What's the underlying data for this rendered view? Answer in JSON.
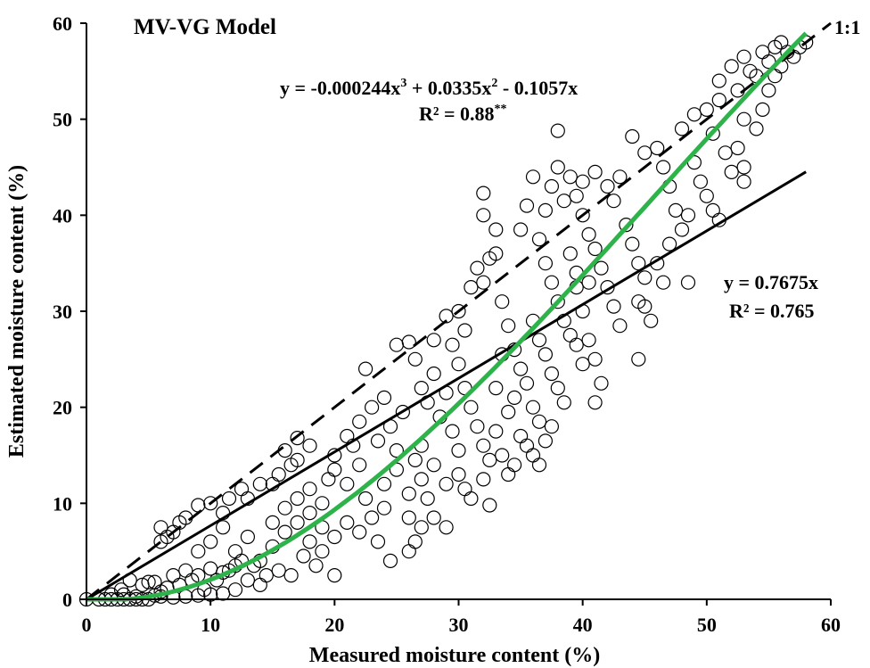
{
  "chart_data": {
    "type": "scatter",
    "title": "MV-VG Model",
    "xlabel": "Measured moisture content (%)",
    "ylabel": "Estimated moisture content (%)",
    "xlim": [
      0,
      60
    ],
    "ylim": [
      0,
      60
    ],
    "x_ticks": [
      0,
      10,
      20,
      30,
      40,
      50,
      60
    ],
    "y_ticks": [
      0,
      10,
      20,
      30,
      40,
      50,
      60
    ],
    "grid": false,
    "marker": "open-circle",
    "colors": {
      "axis": "#000000",
      "points": "#000000",
      "fit_cubic": "#2db34a",
      "fit_linear": "#000000",
      "one_to_one": "#000000"
    },
    "one_to_one_label": "1:1",
    "lines": [
      {
        "type": "one-to-one",
        "style": "dashed",
        "x": [
          0,
          60
        ],
        "y": [
          0,
          60
        ]
      },
      {
        "type": "linear",
        "style": "solid",
        "color": "#000000",
        "slope": 0.7675,
        "x": [
          0,
          58
        ]
      },
      {
        "type": "cubic",
        "style": "solid",
        "color": "#2db34a",
        "coefficients": [
          -0.000244,
          0.0335,
          -0.1057,
          0
        ],
        "x": [
          0,
          58
        ]
      }
    ],
    "annotations": {
      "cubic_equation": {
        "main": "y = -0.000244x",
        "e1": "3",
        "mid": " + 0.0335x",
        "e2": "2",
        "tail": " - 0.1057x"
      },
      "cubic_r2": {
        "main": "R² = 0.88",
        "sup": "**"
      },
      "linear_equation": "y = 0.7675x",
      "linear_r2": "R² = 0.765"
    },
    "points": [
      [
        0.0,
        0.0
      ],
      [
        1.0,
        0.0
      ],
      [
        1.5,
        0.0
      ],
      [
        2.0,
        0.0
      ],
      [
        2.5,
        0.0
      ],
      [
        3.0,
        0.0
      ],
      [
        3.5,
        0.0
      ],
      [
        4.0,
        0.0
      ],
      [
        4.5,
        0.0
      ],
      [
        5.0,
        0.0
      ],
      [
        2.0,
        0.5
      ],
      [
        3.0,
        0.5
      ],
      [
        4.0,
        0.3
      ],
      [
        5.5,
        0.4
      ],
      [
        6.0,
        0.3
      ],
      [
        7.0,
        0.2
      ],
      [
        8.0,
        0.3
      ],
      [
        9.0,
        0.4
      ],
      [
        10.0,
        0.5
      ],
      [
        11.0,
        0.6
      ],
      [
        2.8,
        1.0
      ],
      [
        3.5,
        2.0
      ],
      [
        4.5,
        1.5
      ],
      [
        5.5,
        1.8
      ],
      [
        6.5,
        1.2
      ],
      [
        7.5,
        1.5
      ],
      [
        8.5,
        2.0
      ],
      [
        9.5,
        1.0
      ],
      [
        10.5,
        2.0
      ],
      [
        12.0,
        1.0
      ],
      [
        5.0,
        1.8
      ],
      [
        6.0,
        0.8
      ],
      [
        7.0,
        2.5
      ],
      [
        8.0,
        3.0
      ],
      [
        9.0,
        2.5
      ],
      [
        10.0,
        3.2
      ],
      [
        11.0,
        2.8
      ],
      [
        12.0,
        3.5
      ],
      [
        13.0,
        2.0
      ],
      [
        14.0,
        1.5
      ],
      [
        6.0,
        6.0
      ],
      [
        6.0,
        7.5
      ],
      [
        6.5,
        6.5
      ],
      [
        7.0,
        7.0
      ],
      [
        7.5,
        8.0
      ],
      [
        8.0,
        8.5
      ],
      [
        9.0,
        9.8
      ],
      [
        10.0,
        10.0
      ],
      [
        11.5,
        10.5
      ],
      [
        11.0,
        9.0
      ],
      [
        12.5,
        11.5
      ],
      [
        15.0,
        12.0
      ],
      [
        16.0,
        15.5
      ],
      [
        17.0,
        16.8
      ],
      [
        17.0,
        14.5
      ],
      [
        18.0,
        16.0
      ],
      [
        13.0,
        10.5
      ],
      [
        14.0,
        12.0
      ],
      [
        15.5,
        13.0
      ],
      [
        16.5,
        14.0
      ],
      [
        9.0,
        5.0
      ],
      [
        10.0,
        6.0
      ],
      [
        11.0,
        7.5
      ],
      [
        12.0,
        5.0
      ],
      [
        13.0,
        6.5
      ],
      [
        14.0,
        4.0
      ],
      [
        15.0,
        5.5
      ],
      [
        16.0,
        7.0
      ],
      [
        17.0,
        8.0
      ],
      [
        18.0,
        9.0
      ],
      [
        11.5,
        3.0
      ],
      [
        12.5,
        4.0
      ],
      [
        13.5,
        3.5
      ],
      [
        14.5,
        2.5
      ],
      [
        15.5,
        3.0
      ],
      [
        16.5,
        2.5
      ],
      [
        17.5,
        4.5
      ],
      [
        18.5,
        3.5
      ],
      [
        19.0,
        5.0
      ],
      [
        20.0,
        2.5
      ],
      [
        15.0,
        8.0
      ],
      [
        16.0,
        9.5
      ],
      [
        17.0,
        10.5
      ],
      [
        18.0,
        11.5
      ],
      [
        19.0,
        10.0
      ],
      [
        19.5,
        12.5
      ],
      [
        20.0,
        13.5
      ],
      [
        21.0,
        12.0
      ],
      [
        22.0,
        14.0
      ],
      [
        21.5,
        16.0
      ],
      [
        18.0,
        6.0
      ],
      [
        19.0,
        7.5
      ],
      [
        20.0,
        6.5
      ],
      [
        21.0,
        8.0
      ],
      [
        22.0,
        7.0
      ],
      [
        23.0,
        8.5
      ],
      [
        24.0,
        9.5
      ],
      [
        23.5,
        6.0
      ],
      [
        24.5,
        4.0
      ],
      [
        22.5,
        10.5
      ],
      [
        20.0,
        15.0
      ],
      [
        21.0,
        17.0
      ],
      [
        22.0,
        18.5
      ],
      [
        22.5,
        24.0
      ],
      [
        23.0,
        20.0
      ],
      [
        23.5,
        16.5
      ],
      [
        24.0,
        21.0
      ],
      [
        24.5,
        18.0
      ],
      [
        25.0,
        15.5
      ],
      [
        25.5,
        19.5
      ],
      [
        24.0,
        12.0
      ],
      [
        25.0,
        13.5
      ],
      [
        26.0,
        11.0
      ],
      [
        26.5,
        14.5
      ],
      [
        27.0,
        12.5
      ],
      [
        27.5,
        10.5
      ],
      [
        26.0,
        8.5
      ],
      [
        27.0,
        7.5
      ],
      [
        28.0,
        8.5
      ],
      [
        29.0,
        7.5
      ],
      [
        25.0,
        26.5
      ],
      [
        26.0,
        26.8
      ],
      [
        26.5,
        25.0
      ],
      [
        27.0,
        22.0
      ],
      [
        27.5,
        20.5
      ],
      [
        28.0,
        23.5
      ],
      [
        28.5,
        19.0
      ],
      [
        29.0,
        21.5
      ],
      [
        29.5,
        17.5
      ],
      [
        30.0,
        15.5
      ],
      [
        26.0,
        5.0
      ],
      [
        26.5,
        6.0
      ],
      [
        27.0,
        16.0
      ],
      [
        28.0,
        14.0
      ],
      [
        29.0,
        12.0
      ],
      [
        30.0,
        13.0
      ],
      [
        30.5,
        11.5
      ],
      [
        31.0,
        10.5
      ],
      [
        32.0,
        12.5
      ],
      [
        32.5,
        9.8
      ],
      [
        28.0,
        27.0
      ],
      [
        29.0,
        29.5
      ],
      [
        29.5,
        26.5
      ],
      [
        30.0,
        30.0
      ],
      [
        30.5,
        28.0
      ],
      [
        31.0,
        32.5
      ],
      [
        31.5,
        34.5
      ],
      [
        32.0,
        33.0
      ],
      [
        32.5,
        35.5
      ],
      [
        33.0,
        36.0
      ],
      [
        30.0,
        24.5
      ],
      [
        30.5,
        22.0
      ],
      [
        31.0,
        20.0
      ],
      [
        31.5,
        18.0
      ],
      [
        32.0,
        16.0
      ],
      [
        32.5,
        14.5
      ],
      [
        33.0,
        17.5
      ],
      [
        33.5,
        15.0
      ],
      [
        34.0,
        13.0
      ],
      [
        34.5,
        14.0
      ],
      [
        32.0,
        40.0
      ],
      [
        32.0,
        42.3
      ],
      [
        33.0,
        38.5
      ],
      [
        33.5,
        31.0
      ],
      [
        34.0,
        28.5
      ],
      [
        34.5,
        26.0
      ],
      [
        35.0,
        24.0
      ],
      [
        35.5,
        22.5
      ],
      [
        36.0,
        20.0
      ],
      [
        36.5,
        18.5
      ],
      [
        33.0,
        22.0
      ],
      [
        33.5,
        25.5
      ],
      [
        34.0,
        19.5
      ],
      [
        34.5,
        21.0
      ],
      [
        35.0,
        17.0
      ],
      [
        35.5,
        16.0
      ],
      [
        36.0,
        15.0
      ],
      [
        36.5,
        14.0
      ],
      [
        37.0,
        16.5
      ],
      [
        37.5,
        18.0
      ],
      [
        35.0,
        38.5
      ],
      [
        35.5,
        41.0
      ],
      [
        36.0,
        44.0
      ],
      [
        36.5,
        37.5
      ],
      [
        37.0,
        35.0
      ],
      [
        37.5,
        33.0
      ],
      [
        38.0,
        31.0
      ],
      [
        38.5,
        29.0
      ],
      [
        39.0,
        27.5
      ],
      [
        39.5,
        32.5
      ],
      [
        36.0,
        29.0
      ],
      [
        36.5,
        27.0
      ],
      [
        37.0,
        25.5
      ],
      [
        37.5,
        23.5
      ],
      [
        38.0,
        22.0
      ],
      [
        38.5,
        20.5
      ],
      [
        37.0,
        40.5
      ],
      [
        37.5,
        43.0
      ],
      [
        38.0,
        45.0
      ],
      [
        38.5,
        41.5
      ],
      [
        38.0,
        48.8
      ],
      [
        39.0,
        44.0
      ],
      [
        39.5,
        42.0
      ],
      [
        40.0,
        40.0
      ],
      [
        40.5,
        38.0
      ],
      [
        41.0,
        36.5
      ],
      [
        41.5,
        34.5
      ],
      [
        42.0,
        32.5
      ],
      [
        42.5,
        30.5
      ],
      [
        43.0,
        28.5
      ],
      [
        39.0,
        36.0
      ],
      [
        39.5,
        34.0
      ],
      [
        40.0,
        30.0
      ],
      [
        40.5,
        27.0
      ],
      [
        41.0,
        25.0
      ],
      [
        41.5,
        22.5
      ],
      [
        41.0,
        20.5
      ],
      [
        40.0,
        24.5
      ],
      [
        39.5,
        26.5
      ],
      [
        40.5,
        33.0
      ],
      [
        40.0,
        43.5
      ],
      [
        41.0,
        44.5
      ],
      [
        42.0,
        43.0
      ],
      [
        42.5,
        41.5
      ],
      [
        43.0,
        44.0
      ],
      [
        43.5,
        39.0
      ],
      [
        44.0,
        37.0
      ],
      [
        44.5,
        35.0
      ],
      [
        45.0,
        33.5
      ],
      [
        44.5,
        31.0
      ],
      [
        44.5,
        25.0
      ],
      [
        45.0,
        30.5
      ],
      [
        45.5,
        29.0
      ],
      [
        44.0,
        48.2
      ],
      [
        45.0,
        46.5
      ],
      [
        46.0,
        47.0
      ],
      [
        46.5,
        45.0
      ],
      [
        47.0,
        43.0
      ],
      [
        47.5,
        40.5
      ],
      [
        48.0,
        38.5
      ],
      [
        46.0,
        35.0
      ],
      [
        46.5,
        33.0
      ],
      [
        47.0,
        37.0
      ],
      [
        48.5,
        40.0
      ],
      [
        48.5,
        33.0
      ],
      [
        49.0,
        45.5
      ],
      [
        49.5,
        43.5
      ],
      [
        50.0,
        42.0
      ],
      [
        50.5,
        40.5
      ],
      [
        51.0,
        39.5
      ],
      [
        48.0,
        49.0
      ],
      [
        49.0,
        50.5
      ],
      [
        50.0,
        51.0
      ],
      [
        50.5,
        48.5
      ],
      [
        51.0,
        52.0
      ],
      [
        51.5,
        46.5
      ],
      [
        52.0,
        44.5
      ],
      [
        52.5,
        47.0
      ],
      [
        53.0,
        45.0
      ],
      [
        53.0,
        50.0
      ],
      [
        51.0,
        54.0
      ],
      [
        52.0,
        55.5
      ],
      [
        52.5,
        53.0
      ],
      [
        53.0,
        56.5
      ],
      [
        53.5,
        55.0
      ],
      [
        54.0,
        54.5
      ],
      [
        54.5,
        57.0
      ],
      [
        55.0,
        56.0
      ],
      [
        55.5,
        57.5
      ],
      [
        56.0,
        58.0
      ],
      [
        54.0,
        49.0
      ],
      [
        54.5,
        51.0
      ],
      [
        55.0,
        53.0
      ],
      [
        55.5,
        54.5
      ],
      [
        56.0,
        55.5
      ],
      [
        56.5,
        57.0
      ],
      [
        57.0,
        56.5
      ],
      [
        57.5,
        57.5
      ],
      [
        58.0,
        58.0
      ],
      [
        53.0,
        43.5
      ]
    ]
  }
}
